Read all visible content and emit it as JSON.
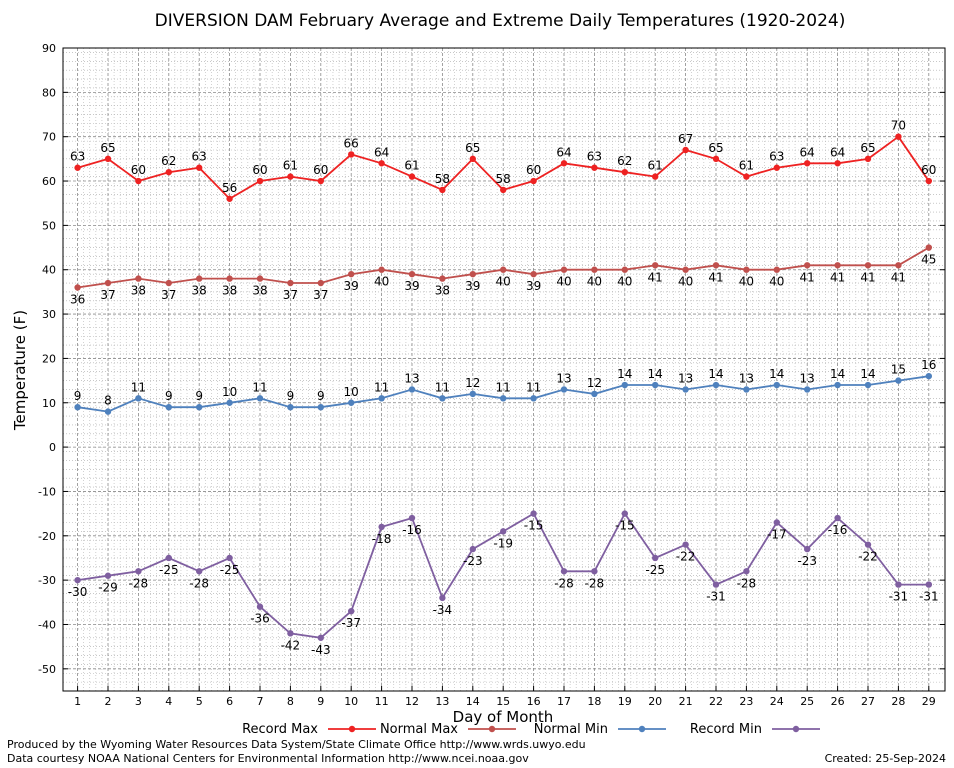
{
  "chart_data": {
    "type": "line",
    "title": "DIVERSION DAM February Average and Extreme Daily Temperatures (1920-2024)",
    "xlabel": "Day of Month",
    "ylabel": "Temperature (F)",
    "ylim": [
      -55,
      90
    ],
    "yticks": [
      -50,
      -40,
      -30,
      -20,
      -10,
      0,
      10,
      20,
      30,
      40,
      50,
      60,
      70,
      80,
      90
    ],
    "x": [
      1,
      2,
      3,
      4,
      5,
      6,
      7,
      8,
      9,
      10,
      11,
      12,
      13,
      14,
      15,
      16,
      17,
      18,
      19,
      20,
      21,
      22,
      23,
      24,
      25,
      26,
      27,
      28,
      29
    ],
    "grid": true,
    "legend_position": "bottom",
    "series": [
      {
        "name": "Record Max",
        "color": "#ee2222",
        "values": [
          63,
          65,
          60,
          62,
          63,
          56,
          60,
          61,
          60,
          66,
          64,
          61,
          58,
          65,
          58,
          60,
          64,
          63,
          62,
          61,
          67,
          65,
          61,
          63,
          64,
          64,
          65,
          70,
          60
        ]
      },
      {
        "name": "Normal Max",
        "color": "#c0504d",
        "values": [
          36,
          37,
          38,
          37,
          38,
          38,
          38,
          37,
          37,
          39,
          40,
          39,
          38,
          39,
          40,
          39,
          40,
          40,
          40,
          41,
          40,
          41,
          40,
          40,
          41,
          41,
          41,
          41,
          45
        ]
      },
      {
        "name": "Normal Min",
        "color": "#4f81bd",
        "values": [
          9,
          8,
          11,
          9,
          9,
          10,
          11,
          9,
          9,
          10,
          11,
          13,
          11,
          12,
          11,
          11,
          13,
          12,
          14,
          14,
          13,
          14,
          13,
          14,
          13,
          14,
          14,
          15,
          16
        ]
      },
      {
        "name": "Record Min",
        "color": "#7f5fa0",
        "values": [
          -30,
          -29,
          -28,
          -25,
          -28,
          -25,
          -36,
          -42,
          -43,
          -37,
          -18,
          -16,
          -34,
          -23,
          -19,
          -15,
          -28,
          -28,
          -15,
          -25,
          -22,
          -31,
          -28,
          -17,
          -23,
          -16,
          -22,
          -31,
          -31
        ]
      }
    ]
  },
  "credits": {
    "produced_by": "Produced by the Wyoming Water Resources Data System/State Climate Office http://www.wrds.uwyo.edu",
    "data_courtesy": "Data courtesy NOAA National Centers for Environmental Information http://www.ncei.noaa.gov",
    "created": "Created: 25-Sep-2024"
  }
}
